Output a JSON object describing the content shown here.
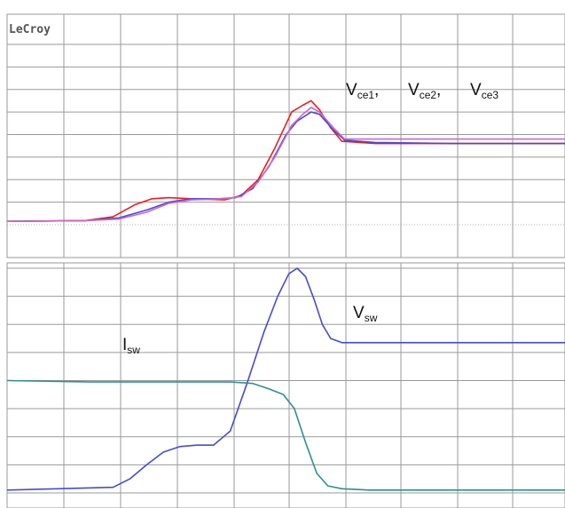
{
  "brand": "LeCroy",
  "colors": {
    "background": "#ffffff",
    "grid": "#9a9a9a",
    "gridDotted": "#b0b0b0",
    "vce1": "#ee1c1c",
    "vce2": "#4a4ad2",
    "vce3": "#cc66cc",
    "vsw": "#4a4ad2",
    "isw": "#2e8f8f"
  },
  "chart_data": [
    {
      "type": "line",
      "title": "",
      "grid": true,
      "xlim": [
        0,
        10
      ],
      "ylim": [
        0,
        8
      ],
      "annotations": [
        {
          "base": "V",
          "sub": "ce1",
          "suffix": ","
        },
        {
          "base": "V",
          "sub": "ce2",
          "suffix": ","
        },
        {
          "base": "V",
          "sub": "ce3",
          "suffix": ""
        }
      ],
      "series": [
        {
          "id": "vce1",
          "color": "#ee1c1c",
          "x": [
            0,
            1.4,
            1.9,
            2.3,
            2.6,
            2.9,
            3.3,
            3.9,
            4.2,
            4.5,
            4.8,
            5.1,
            5.3,
            5.45,
            5.6,
            5.8,
            6.0,
            6.6,
            8,
            10
          ],
          "y": [
            0.15,
            0.18,
            0.35,
            0.9,
            1.15,
            1.2,
            1.15,
            1.1,
            1.3,
            2.0,
            3.4,
            5.0,
            5.3,
            5.5,
            5.1,
            4.3,
            3.7,
            3.6,
            3.6,
            3.6
          ]
        },
        {
          "id": "vce2",
          "color": "#4a4ad2",
          "x": [
            0,
            1.4,
            2.0,
            2.5,
            2.9,
            3.3,
            3.8,
            4.1,
            4.4,
            4.7,
            5.0,
            5.2,
            5.45,
            5.6,
            5.85,
            6.05,
            6.6,
            8,
            10
          ],
          "y": [
            0.15,
            0.18,
            0.3,
            0.65,
            1.0,
            1.15,
            1.15,
            1.2,
            1.6,
            2.6,
            4.0,
            4.6,
            5.0,
            4.9,
            4.2,
            3.75,
            3.65,
            3.6,
            3.6
          ]
        },
        {
          "id": "vce3",
          "color": "#cc66cc",
          "x": [
            0,
            1.4,
            2.0,
            2.5,
            2.9,
            3.3,
            3.9,
            4.2,
            4.5,
            4.8,
            5.1,
            5.3,
            5.45,
            5.6,
            5.85,
            6.05,
            6.6,
            8,
            10
          ],
          "y": [
            0.15,
            0.18,
            0.25,
            0.55,
            0.95,
            1.1,
            1.15,
            1.25,
            1.9,
            3.0,
            4.4,
            4.9,
            5.2,
            5.0,
            4.3,
            3.8,
            3.8,
            3.8,
            3.8
          ]
        }
      ]
    },
    {
      "type": "line",
      "title": "",
      "grid": true,
      "xlim": [
        0,
        10
      ],
      "ylim": [
        0,
        8
      ],
      "annotations": [
        {
          "base": "V",
          "sub": "sw",
          "suffix": ""
        },
        {
          "base": "I",
          "sub": "sw",
          "suffix": ""
        }
      ],
      "series": [
        {
          "id": "vsw",
          "color": "#4a4ad2",
          "x": [
            0,
            1.9,
            2.2,
            2.5,
            2.8,
            3.1,
            3.4,
            3.7,
            4.0,
            4.3,
            4.6,
            4.85,
            5.05,
            5.2,
            5.35,
            5.5,
            5.65,
            5.8,
            6.0,
            6.5,
            10
          ],
          "y": [
            0.1,
            0.2,
            0.5,
            1.0,
            1.45,
            1.65,
            1.7,
            1.7,
            2.2,
            3.9,
            5.7,
            7.0,
            7.8,
            8.0,
            7.7,
            6.9,
            6.0,
            5.5,
            5.35,
            5.35,
            5.35
          ]
        },
        {
          "id": "isw",
          "color": "#2e8f8f",
          "x": [
            0,
            1.5,
            3.0,
            4.0,
            4.4,
            4.7,
            4.95,
            5.15,
            5.35,
            5.55,
            5.75,
            6.0,
            6.5,
            8,
            10
          ],
          "y": [
            4.0,
            3.95,
            3.95,
            3.95,
            3.9,
            3.7,
            3.5,
            3.0,
            1.8,
            0.7,
            0.25,
            0.15,
            0.1,
            0.1,
            0.1
          ]
        }
      ]
    }
  ]
}
